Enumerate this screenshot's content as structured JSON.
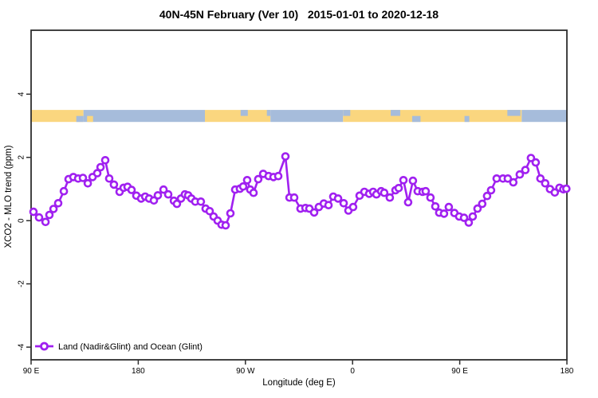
{
  "chart_data": {
    "type": "line",
    "title": "40N-45N February (Ver 10)   2015-01-01 to 2020-12-18",
    "xlabel": "Longitude (deg E)",
    "ylabel": "XCO2 - MLO trend (ppm)",
    "grid": false,
    "legend": {
      "label": "Land (Nadir&Glint) and Ocean (Glint)",
      "position": "bottom-left",
      "marker": "open-circle-on-line"
    },
    "series_color": "#A020F0",
    "marker_fill": "#ffffff",
    "axis_color": "#2e2e2e",
    "ylim": [
      -4.4,
      6.02
    ],
    "yticks": [
      -4,
      -2,
      0,
      2,
      4
    ],
    "x_axis_span_deg": 450,
    "xticks": [
      {
        "pos": 0,
        "label": "90 E"
      },
      {
        "pos": 90,
        "label": "180"
      },
      {
        "pos": 180,
        "label": "90 W"
      },
      {
        "pos": 270,
        "label": "0"
      },
      {
        "pos": 360,
        "label": "90 E"
      },
      {
        "pos": 450,
        "label": "180"
      }
    ],
    "surface_band": {
      "description": "land/ocean strip along longitude",
      "y_ppm": [
        3.12,
        3.5
      ],
      "land_color": "#FAD67F",
      "ocean_color": "#A6BCDB",
      "segments": [
        {
          "type": "land",
          "row": "full",
          "from": 0,
          "to": 44
        },
        {
          "type": "ocean",
          "row": "full",
          "from": 44,
          "to": 146
        },
        {
          "type": "land",
          "row": "full",
          "from": 146,
          "to": 201
        },
        {
          "type": "ocean",
          "row": "full",
          "from": 201,
          "to": 262
        },
        {
          "type": "land",
          "row": "full",
          "from": 262,
          "to": 412
        },
        {
          "type": "ocean",
          "row": "full",
          "from": 412,
          "to": 450
        },
        {
          "type": "ocean",
          "row": "bottom",
          "from": 38,
          "to": 44
        },
        {
          "type": "land",
          "row": "bottom",
          "from": 47,
          "to": 52
        },
        {
          "type": "ocean",
          "row": "top",
          "from": 176,
          "to": 182
        },
        {
          "type": "ocean",
          "row": "top",
          "from": 198,
          "to": 201
        },
        {
          "type": "ocean",
          "row": "top",
          "from": 262,
          "to": 268
        },
        {
          "type": "ocean",
          "row": "top",
          "from": 302,
          "to": 310
        },
        {
          "type": "ocean",
          "row": "bottom",
          "from": 320,
          "to": 327
        },
        {
          "type": "ocean",
          "row": "bottom",
          "from": 364,
          "to": 368
        },
        {
          "type": "ocean",
          "row": "top",
          "from": 400,
          "to": 411
        }
      ]
    },
    "points": [
      [
        2.0,
        0.28
      ],
      [
        6.7,
        0.1
      ],
      [
        12.1,
        -0.04
      ],
      [
        15.4,
        0.18
      ],
      [
        18.8,
        0.37
      ],
      [
        22.8,
        0.55
      ],
      [
        27.5,
        0.93
      ],
      [
        31.5,
        1.31
      ],
      [
        35.5,
        1.38
      ],
      [
        39.5,
        1.33
      ],
      [
        43.5,
        1.35
      ],
      [
        47.6,
        1.18
      ],
      [
        51.6,
        1.38
      ],
      [
        55.6,
        1.5
      ],
      [
        58.3,
        1.69
      ],
      [
        62.3,
        1.91
      ],
      [
        65.6,
        1.33
      ],
      [
        69.6,
        1.14
      ],
      [
        74.3,
        0.91
      ],
      [
        77.7,
        1.04
      ],
      [
        81.0,
        1.07
      ],
      [
        84.4,
        0.97
      ],
      [
        88.4,
        0.79
      ],
      [
        92.4,
        0.7
      ],
      [
        95.8,
        0.76
      ],
      [
        99.1,
        0.7
      ],
      [
        103.1,
        0.64
      ],
      [
        106.5,
        0.8
      ],
      [
        111.2,
        0.98
      ],
      [
        115.2,
        0.83
      ],
      [
        119.9,
        0.63
      ],
      [
        122.5,
        0.53
      ],
      [
        125.9,
        0.7
      ],
      [
        129.2,
        0.83
      ],
      [
        131.9,
        0.8
      ],
      [
        134.6,
        0.7
      ],
      [
        137.9,
        0.6
      ],
      [
        142.6,
        0.6
      ],
      [
        146.6,
        0.38
      ],
      [
        150.0,
        0.3
      ],
      [
        153.3,
        0.13
      ],
      [
        156.7,
        0.0
      ],
      [
        160.0,
        -0.13
      ],
      [
        163.4,
        -0.15
      ],
      [
        167.4,
        0.23
      ],
      [
        171.4,
        0.98
      ],
      [
        175.4,
        1.01
      ],
      [
        178.1,
        1.08
      ],
      [
        181.5,
        1.28
      ],
      [
        184.1,
        0.98
      ],
      [
        186.8,
        0.88
      ],
      [
        190.8,
        1.31
      ],
      [
        194.9,
        1.48
      ],
      [
        199.5,
        1.41
      ],
      [
        203.6,
        1.38
      ],
      [
        207.6,
        1.41
      ],
      [
        213.6,
        2.03
      ],
      [
        217.0,
        0.73
      ],
      [
        221.0,
        0.73
      ],
      [
        226.3,
        0.38
      ],
      [
        230.4,
        0.4
      ],
      [
        233.7,
        0.38
      ],
      [
        237.7,
        0.26
      ],
      [
        241.7,
        0.43
      ],
      [
        245.8,
        0.54
      ],
      [
        249.8,
        0.49
      ],
      [
        253.8,
        0.76
      ],
      [
        257.8,
        0.7
      ],
      [
        262.5,
        0.55
      ],
      [
        266.5,
        0.32
      ],
      [
        270.5,
        0.43
      ],
      [
        275.9,
        0.79
      ],
      [
        279.9,
        0.91
      ],
      [
        283.9,
        0.85
      ],
      [
        287.3,
        0.91
      ],
      [
        290.0,
        0.83
      ],
      [
        294.0,
        0.93
      ],
      [
        296.6,
        0.88
      ],
      [
        301.3,
        0.73
      ],
      [
        306.0,
        0.96
      ],
      [
        308.7,
        1.03
      ],
      [
        312.7,
        1.28
      ],
      [
        316.7,
        0.58
      ],
      [
        320.7,
        1.26
      ],
      [
        324.7,
        0.93
      ],
      [
        328.8,
        0.91
      ],
      [
        331.4,
        0.93
      ],
      [
        335.4,
        0.73
      ],
      [
        339.5,
        0.45
      ],
      [
        342.8,
        0.25
      ],
      [
        346.8,
        0.22
      ],
      [
        350.8,
        0.43
      ],
      [
        355.5,
        0.24
      ],
      [
        359.5,
        0.13
      ],
      [
        363.6,
        0.09
      ],
      [
        367.6,
        -0.06
      ],
      [
        370.9,
        0.13
      ],
      [
        374.9,
        0.38
      ],
      [
        378.9,
        0.53
      ],
      [
        383.0,
        0.78
      ],
      [
        386.3,
        0.96
      ],
      [
        391.0,
        1.33
      ],
      [
        396.3,
        1.33
      ],
      [
        400.4,
        1.33
      ],
      [
        405.0,
        1.21
      ],
      [
        410.4,
        1.46
      ],
      [
        415.1,
        1.6
      ],
      [
        419.8,
        1.98
      ],
      [
        423.8,
        1.84
      ],
      [
        427.8,
        1.33
      ],
      [
        431.8,
        1.18
      ],
      [
        435.8,
        1.0
      ],
      [
        439.8,
        0.89
      ],
      [
        443.8,
        1.04
      ],
      [
        447.0,
        0.99
      ],
      [
        449.5,
        1.01
      ]
    ]
  }
}
